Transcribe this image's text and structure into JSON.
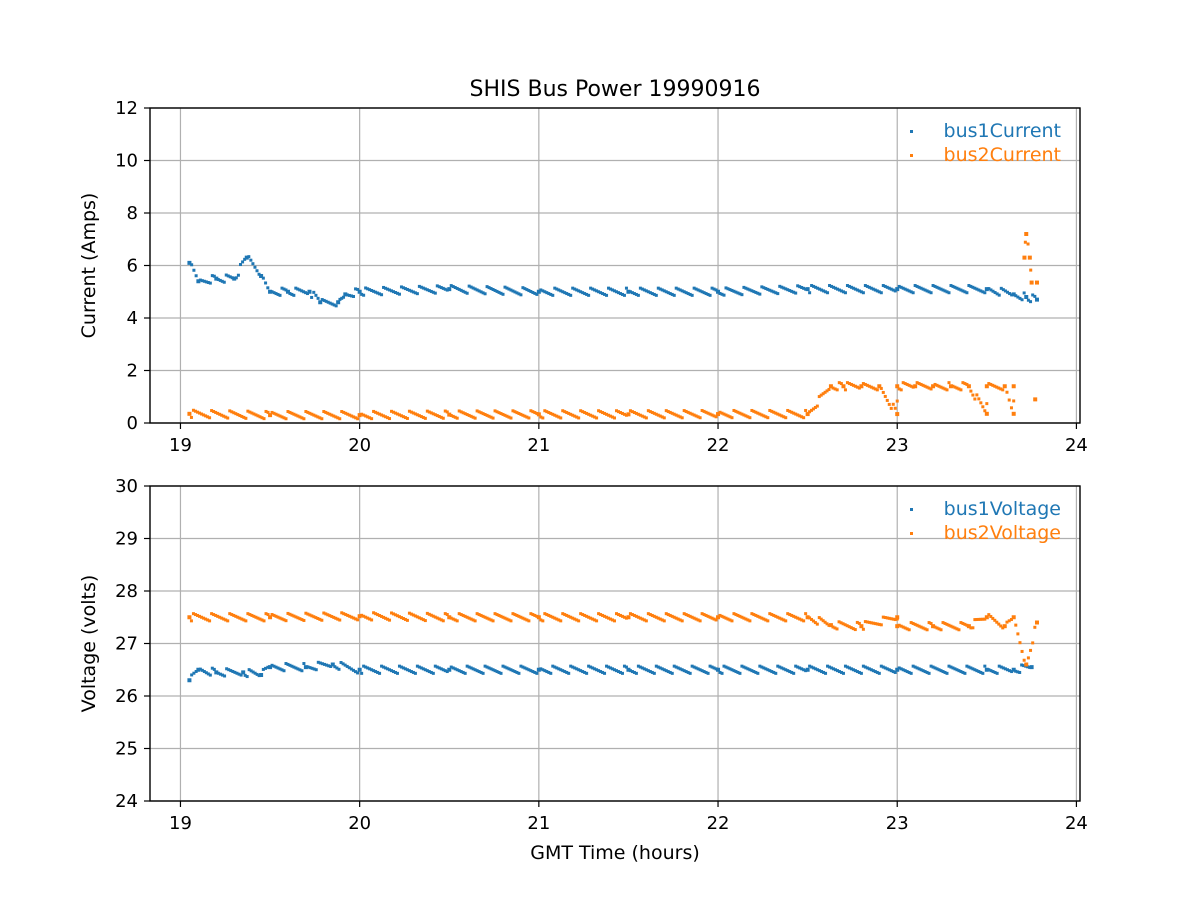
{
  "chart_data": [
    {
      "type": "scatter",
      "title": "SHIS Bus Power 19990916",
      "xlabel": "",
      "ylabel": "Current (Amps)",
      "xlim": [
        18.83,
        24.02
      ],
      "ylim": [
        0,
        12
      ],
      "xticks": [
        "19",
        "20",
        "21",
        "22",
        "23",
        "24"
      ],
      "yticks": [
        "0",
        "2",
        "4",
        "6",
        "8",
        "10",
        "12"
      ],
      "grid": true,
      "legend_position": "top-right",
      "series": [
        {
          "name": "bus1Current",
          "color": "#1f77b4",
          "points": [
            {
              "x": 19.05,
              "y": 6.1
            },
            {
              "x": 19.1,
              "y": 5.4
            },
            {
              "x": 19.2,
              "y": 5.5
            },
            {
              "x": 19.3,
              "y": 5.5
            },
            {
              "x": 19.37,
              "y": 6.3
            },
            {
              "x": 19.45,
              "y": 5.6
            },
            {
              "x": 19.5,
              "y": 5.0
            },
            {
              "x": 19.6,
              "y": 5.0
            },
            {
              "x": 19.72,
              "y": 5.0
            },
            {
              "x": 19.78,
              "y": 4.6
            },
            {
              "x": 19.88,
              "y": 4.6
            },
            {
              "x": 19.92,
              "y": 4.9
            },
            {
              "x": 20.0,
              "y": 5.0
            },
            {
              "x": 20.5,
              "y": 5.1
            },
            {
              "x": 21.0,
              "y": 5.0
            },
            {
              "x": 21.5,
              "y": 5.0
            },
            {
              "x": 22.0,
              "y": 5.0
            },
            {
              "x": 22.5,
              "y": 5.1
            },
            {
              "x": 23.0,
              "y": 5.1
            },
            {
              "x": 23.5,
              "y": 5.1
            },
            {
              "x": 23.65,
              "y": 4.9
            },
            {
              "x": 23.72,
              "y": 4.8
            },
            {
              "x": 23.78,
              "y": 4.7
            }
          ]
        },
        {
          "name": "bus2Current",
          "color": "#ff7f0e",
          "points": [
            {
              "x": 19.05,
              "y": 0.35
            },
            {
              "x": 19.5,
              "y": 0.3
            },
            {
              "x": 20.0,
              "y": 0.3
            },
            {
              "x": 20.5,
              "y": 0.32
            },
            {
              "x": 21.0,
              "y": 0.33
            },
            {
              "x": 21.5,
              "y": 0.33
            },
            {
              "x": 22.0,
              "y": 0.34
            },
            {
              "x": 22.5,
              "y": 0.34
            },
            {
              "x": 23.0,
              "y": 0.34
            },
            {
              "x": 23.5,
              "y": 0.35
            },
            {
              "x": 23.65,
              "y": 0.35
            },
            {
              "x": 22.63,
              "y": 1.4
            },
            {
              "x": 22.7,
              "y": 1.4
            },
            {
              "x": 22.8,
              "y": 1.4
            },
            {
              "x": 22.9,
              "y": 1.4
            },
            {
              "x": 23.0,
              "y": 1.4
            },
            {
              "x": 23.1,
              "y": 1.4
            },
            {
              "x": 23.2,
              "y": 1.4
            },
            {
              "x": 23.3,
              "y": 1.4
            },
            {
              "x": 23.4,
              "y": 1.4
            },
            {
              "x": 23.5,
              "y": 1.4
            },
            {
              "x": 23.6,
              "y": 1.4
            },
            {
              "x": 23.65,
              "y": 1.4
            },
            {
              "x": 23.72,
              "y": 7.2
            },
            {
              "x": 23.71,
              "y": 6.3
            },
            {
              "x": 23.74,
              "y": 6.3
            },
            {
              "x": 23.75,
              "y": 5.35
            },
            {
              "x": 23.78,
              "y": 5.35
            },
            {
              "x": 23.77,
              "y": 0.9
            }
          ]
        }
      ]
    },
    {
      "type": "scatter",
      "title": "",
      "xlabel": "GMT Time (hours)",
      "ylabel": "Voltage (volts)",
      "xlim": [
        18.83,
        24.02
      ],
      "ylim": [
        24,
        30
      ],
      "xticks": [
        "19",
        "20",
        "21",
        "22",
        "23",
        "24"
      ],
      "yticks": [
        "24",
        "25",
        "26",
        "27",
        "28",
        "29",
        "30"
      ],
      "grid": true,
      "legend_position": "top-right",
      "series": [
        {
          "name": "bus1Voltage",
          "color": "#1f77b4",
          "points": [
            {
              "x": 19.05,
              "y": 26.3
            },
            {
              "x": 19.1,
              "y": 26.5
            },
            {
              "x": 19.2,
              "y": 26.45
            },
            {
              "x": 19.35,
              "y": 26.45
            },
            {
              "x": 19.45,
              "y": 26.4
            },
            {
              "x": 19.5,
              "y": 26.55
            },
            {
              "x": 19.7,
              "y": 26.55
            },
            {
              "x": 19.85,
              "y": 26.6
            },
            {
              "x": 20.0,
              "y": 26.5
            },
            {
              "x": 20.5,
              "y": 26.5
            },
            {
              "x": 21.0,
              "y": 26.5
            },
            {
              "x": 21.5,
              "y": 26.5
            },
            {
              "x": 22.0,
              "y": 26.5
            },
            {
              "x": 22.5,
              "y": 26.5
            },
            {
              "x": 23.0,
              "y": 26.5
            },
            {
              "x": 23.5,
              "y": 26.5
            },
            {
              "x": 23.65,
              "y": 26.5
            },
            {
              "x": 23.75,
              "y": 26.55
            }
          ]
        },
        {
          "name": "bus2Voltage",
          "color": "#ff7f0e",
          "points": [
            {
              "x": 19.05,
              "y": 27.5
            },
            {
              "x": 19.5,
              "y": 27.5
            },
            {
              "x": 20.0,
              "y": 27.52
            },
            {
              "x": 20.5,
              "y": 27.5
            },
            {
              "x": 21.0,
              "y": 27.5
            },
            {
              "x": 21.5,
              "y": 27.5
            },
            {
              "x": 22.0,
              "y": 27.5
            },
            {
              "x": 22.5,
              "y": 27.5
            },
            {
              "x": 23.0,
              "y": 27.5
            },
            {
              "x": 23.5,
              "y": 27.5
            },
            {
              "x": 23.65,
              "y": 27.5
            },
            {
              "x": 22.63,
              "y": 27.35
            },
            {
              "x": 22.8,
              "y": 27.33
            },
            {
              "x": 23.0,
              "y": 27.33
            },
            {
              "x": 23.2,
              "y": 27.33
            },
            {
              "x": 23.4,
              "y": 27.33
            },
            {
              "x": 23.6,
              "y": 27.33
            },
            {
              "x": 23.72,
              "y": 26.6
            },
            {
              "x": 23.78,
              "y": 27.4
            }
          ]
        }
      ]
    }
  ]
}
